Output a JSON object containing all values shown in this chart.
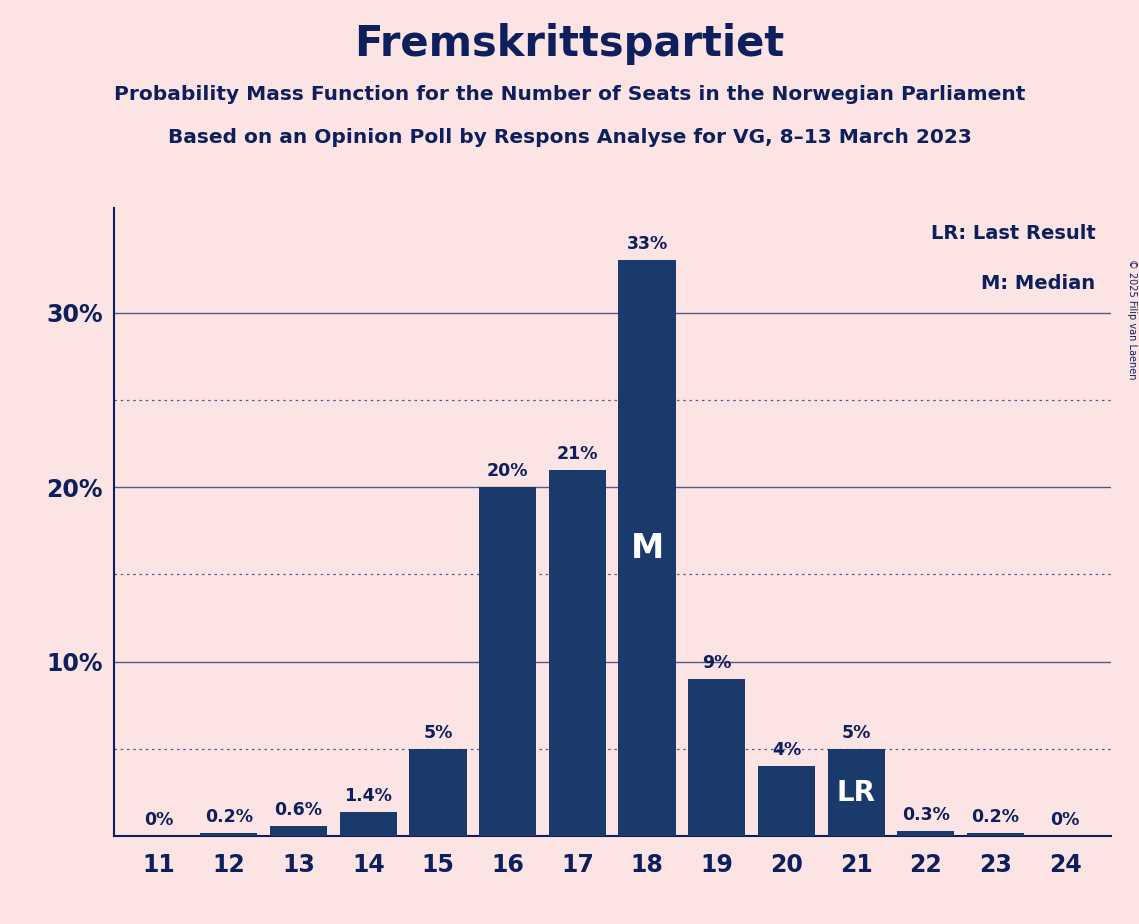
{
  "title": "Fremskrittspartiet",
  "subtitle1": "Probability Mass Function for the Number of Seats in the Norwegian Parliament",
  "subtitle2": "Based on an Opinion Poll by Respons Analyse for VG, 8–13 March 2023",
  "copyright": "© 2025 Filip van Laenen",
  "legend_lr": "LR: Last Result",
  "legend_m": "M: Median",
  "categories": [
    11,
    12,
    13,
    14,
    15,
    16,
    17,
    18,
    19,
    20,
    21,
    22,
    23,
    24
  ],
  "values": [
    0.0,
    0.2,
    0.6,
    1.4,
    5.0,
    20.0,
    21.0,
    33.0,
    9.0,
    4.0,
    5.0,
    0.3,
    0.2,
    0.0
  ],
  "labels": [
    "0%",
    "0.2%",
    "0.6%",
    "1.4%",
    "5%",
    "20%",
    "21%",
    "33%",
    "9%",
    "4%",
    "5%",
    "0.3%",
    "0.2%",
    "0%"
  ],
  "bar_color": "#1a3a6b",
  "background_color": "#fce4e4",
  "text_color": "#0d1f5c",
  "median_seat": 18,
  "lr_seat": 21,
  "ylim_max": 36,
  "solid_grid_ticks": [
    10,
    20,
    30
  ],
  "dotted_grid_ticks": [
    5,
    15,
    25
  ]
}
